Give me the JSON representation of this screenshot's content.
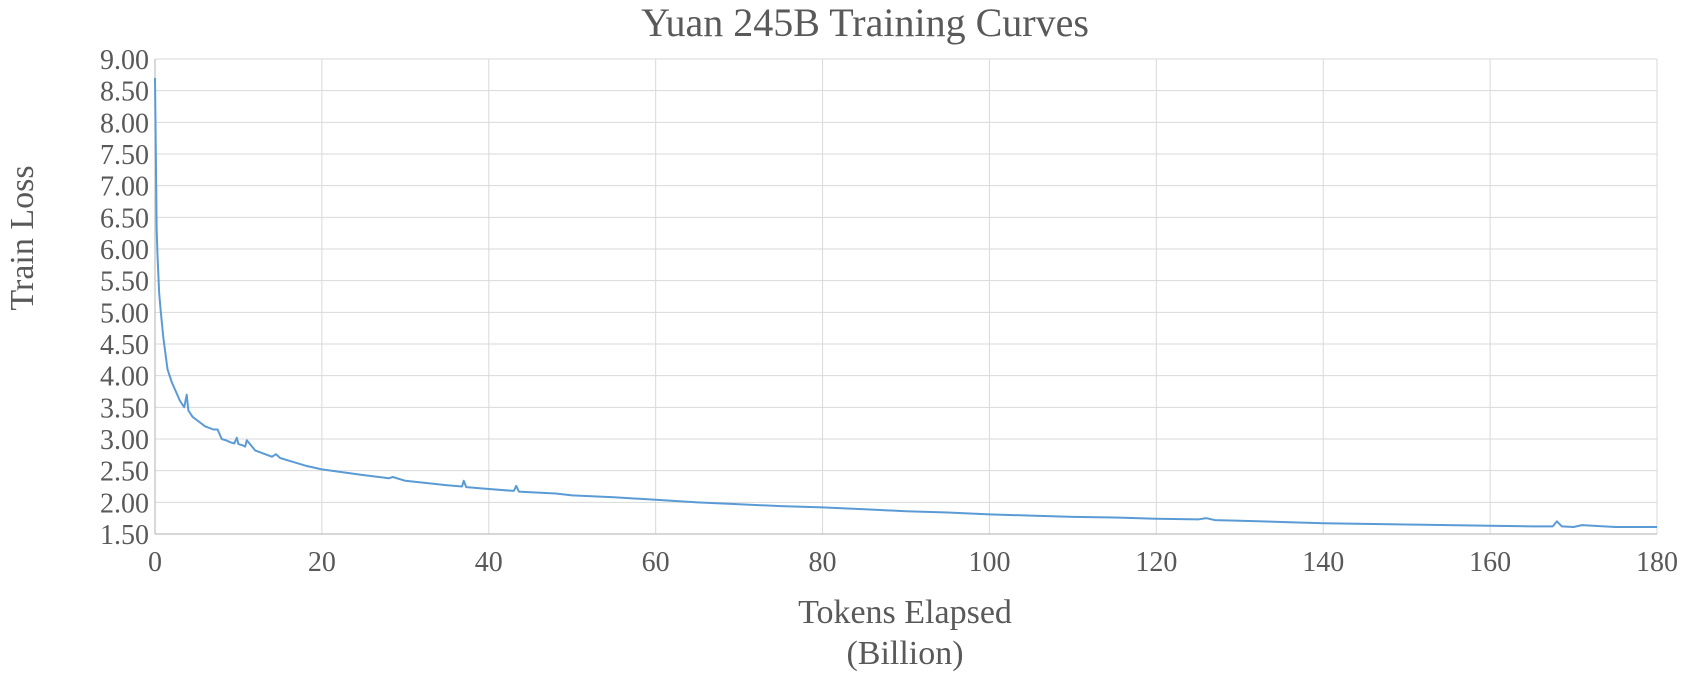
{
  "colors": {
    "series": "#5b9bd5",
    "grid": "#d9d9d9",
    "text": "#595959"
  },
  "chart_data": {
    "type": "line",
    "title": "Yuan 245B Training Curves",
    "xlabel": [
      "Tokens Elapsed",
      "(Billion)"
    ],
    "ylabel": "Train Loss",
    "xlim": [
      0,
      180
    ],
    "ylim": [
      1.5,
      9.0
    ],
    "x_ticks": [
      0,
      20,
      40,
      60,
      80,
      100,
      120,
      140,
      160,
      180
    ],
    "x_tick_labels": [
      "0",
      "20",
      "40",
      "60",
      "80",
      "100",
      "120",
      "140",
      "160",
      "180"
    ],
    "y_ticks": [
      1.5,
      2.0,
      2.5,
      3.0,
      3.5,
      4.0,
      4.5,
      5.0,
      5.5,
      6.0,
      6.5,
      7.0,
      7.5,
      8.0,
      8.5,
      9.0
    ],
    "y_tick_labels": [
      "1.50",
      "2.00",
      "2.50",
      "3.00",
      "3.50",
      "4.00",
      "4.50",
      "5.00",
      "5.50",
      "6.00",
      "6.50",
      "7.00",
      "7.50",
      "8.00",
      "8.50",
      "9.00"
    ],
    "grid": true,
    "legend": "none",
    "series": [
      {
        "x": [
          0,
          0.1,
          0.2,
          0.3,
          0.4,
          0.5,
          0.7,
          1.0,
          1.5,
          2.0,
          2.5,
          3.0,
          3.5,
          3.8,
          4.0,
          4.5,
          5.0,
          6.0,
          7.0,
          7.5,
          8.0,
          8.5,
          9.0,
          9.5,
          9.8,
          10.0,
          10.5,
          10.8,
          11.0,
          12.0,
          14.0,
          14.5,
          15.0,
          16.0,
          18.0,
          20.0,
          25.0,
          28.0,
          28.5,
          30.0,
          35.0,
          36.8,
          37.0,
          37.3,
          40.0,
          43.0,
          43.3,
          43.6,
          45.0,
          48.0,
          50.0,
          55.0,
          60.0,
          65.0,
          70.0,
          75.0,
          80.0,
          85.0,
          90.0,
          95.0,
          100.0,
          105.0,
          110.0,
          115.0,
          120.0,
          125.0,
          126.0,
          127.0,
          130.0,
          135.0,
          140.0,
          145.0,
          150.0,
          155.0,
          160.0,
          165.0,
          167.5,
          168.0,
          168.6,
          170.0,
          171.0,
          175.0,
          180.0
        ],
        "y": [
          8.7,
          7.5,
          6.3,
          5.9,
          5.6,
          5.3,
          5.0,
          4.6,
          4.1,
          3.9,
          3.75,
          3.6,
          3.5,
          3.7,
          3.45,
          3.35,
          3.3,
          3.2,
          3.15,
          3.15,
          3.0,
          2.98,
          2.95,
          2.93,
          3.02,
          2.92,
          2.9,
          2.88,
          2.98,
          2.82,
          2.72,
          2.76,
          2.7,
          2.66,
          2.58,
          2.52,
          2.43,
          2.38,
          2.4,
          2.34,
          2.27,
          2.25,
          2.34,
          2.24,
          2.21,
          2.18,
          2.26,
          2.17,
          2.16,
          2.14,
          2.11,
          2.08,
          2.04,
          2.0,
          1.97,
          1.94,
          1.92,
          1.89,
          1.86,
          1.84,
          1.81,
          1.79,
          1.77,
          1.76,
          1.74,
          1.73,
          1.75,
          1.72,
          1.71,
          1.69,
          1.67,
          1.66,
          1.65,
          1.64,
          1.63,
          1.62,
          1.62,
          1.7,
          1.62,
          1.61,
          1.64,
          1.61,
          1.61
        ]
      }
    ]
  }
}
